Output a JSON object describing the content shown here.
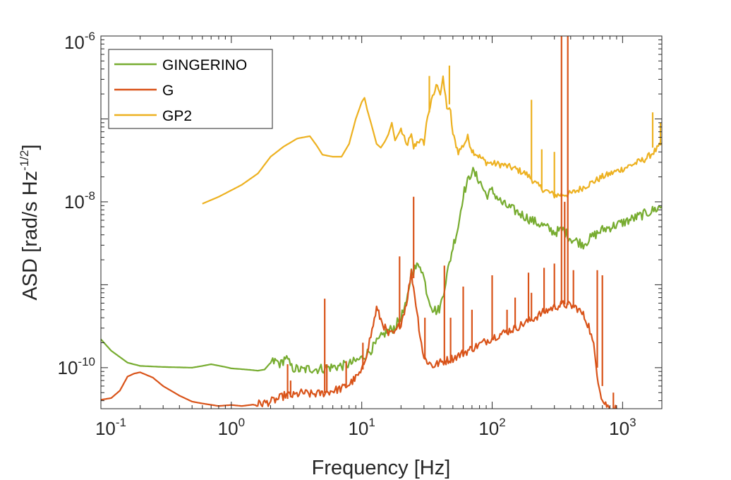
{
  "chart_data": {
    "type": "line",
    "title": "",
    "xlabel": "Frequency  [Hz]",
    "ylabel": "ASD  [rad/s Hz",
    "ylabel_sup": "-1/2",
    "ylabel_close": "]",
    "xscale": "log",
    "yscale": "log",
    "xlim": [
      0.1,
      2000
    ],
    "ylim": [
      3.2e-11,
      1e-06
    ],
    "grid": false,
    "legend_location": "top-left",
    "x_ticks": [
      {
        "value": 0.1,
        "base": "10",
        "exp": "-1"
      },
      {
        "value": 1,
        "base": "10",
        "exp": "0"
      },
      {
        "value": 10,
        "base": "10",
        "exp": "1"
      },
      {
        "value": 100,
        "base": "10",
        "exp": "2"
      },
      {
        "value": 1000,
        "base": "10",
        "exp": "3"
      }
    ],
    "y_ticks": [
      {
        "value": 1e-10,
        "base": "10",
        "exp": "-10"
      },
      {
        "value": 1e-08,
        "base": "10",
        "exp": "-8"
      },
      {
        "value": 1e-06,
        "base": "10",
        "exp": "-6"
      }
    ],
    "series": [
      {
        "name": "GINGERINO",
        "color": "#77AC30",
        "x": [
          0.1,
          0.12,
          0.16,
          0.2,
          0.3,
          0.5,
          0.6,
          0.7,
          0.9,
          1.0,
          1.2,
          1.4,
          1.6,
          1.8,
          2.0,
          2.2,
          2.4,
          2.6,
          2.9,
          3.5,
          4.0,
          4.5,
          5.5,
          7.0,
          8.0,
          9.0,
          10,
          12,
          15,
          18,
          20,
          22,
          24,
          26,
          28,
          30,
          32,
          35,
          38,
          40,
          45,
          50,
          55,
          60,
          70,
          80,
          90,
          100,
          120,
          150,
          200,
          250,
          300,
          350,
          400,
          500,
          600,
          700,
          1000,
          1500,
          2000
        ],
        "y": [
          2.2e-10,
          1.6e-10,
          1.15e-10,
          1.05e-10,
          1.02e-10,
          1e-10,
          1.05e-10,
          1.1e-10,
          1.02e-10,
          9.8e-11,
          9.6e-11,
          9.4e-11,
          9.2e-11,
          9.5e-11,
          1.15e-10,
          1.2e-10,
          1.1e-10,
          1.35e-10,
          1e-10,
          9.3e-11,
          9.8e-11,
          9.6e-11,
          1e-10,
          1.05e-10,
          1.1e-10,
          1.2e-10,
          1.3e-10,
          1.7e-10,
          2.6e-10,
          3.1e-10,
          4.1e-10,
          5.7e-10,
          1.45e-09,
          1.6e-09,
          1.8e-09,
          1.2e-09,
          7.5e-10,
          5.2e-10,
          4.8e-10,
          5.4e-10,
          1.3e-09,
          2.9e-09,
          5.1e-09,
          1.25e-08,
          2.4e-08,
          1.8e-08,
          1.2e-08,
          1.35e-08,
          9.5e-09,
          7.8e-09,
          6e-09,
          5.1e-09,
          4.3e-09,
          4.6e-09,
          3.6e-09,
          3.1e-09,
          3.9e-09,
          4.6e-09,
          5.6e-09,
          7.2e-09,
          8.8e-09
        ]
      },
      {
        "name": "G",
        "color": "#D95319",
        "x": [
          0.1,
          0.12,
          0.14,
          0.16,
          0.18,
          0.2,
          0.25,
          0.3,
          0.4,
          0.5,
          0.6,
          0.8,
          1.0,
          1.2,
          1.5,
          1.8,
          2.0,
          2.3,
          2.6,
          3.0,
          3.5,
          4.0,
          5.0,
          6.0,
          7.0,
          8.0,
          9.0,
          10,
          11,
          12,
          13,
          14,
          16,
          18,
          20,
          22,
          24,
          26,
          28,
          30,
          35,
          40,
          50,
          60,
          80,
          100,
          150,
          200,
          250,
          300,
          350,
          400,
          450,
          500,
          550,
          600,
          650,
          700,
          800,
          900
        ],
        "y": [
          4.1e-11,
          4.3e-11,
          5.3e-11,
          7.8e-11,
          8.5e-11,
          8.8e-11,
          7.6e-11,
          6e-11,
          4.6e-11,
          3.9e-11,
          3.7e-11,
          3.45e-11,
          3.55e-11,
          3.45e-11,
          3.6e-11,
          3.75e-11,
          3.9e-11,
          4.2e-11,
          4.7e-11,
          4.6e-11,
          5e-11,
          4.8e-11,
          4.9e-11,
          5.3e-11,
          5.6e-11,
          6.3e-11,
          7.5e-11,
          8.9e-11,
          1.6e-10,
          2.8e-10,
          5.2e-10,
          3.8e-10,
          2.5e-10,
          2.6e-10,
          3.5e-10,
          6e-10,
          1.4e-09,
          6e-10,
          2.5e-10,
          1.3e-10,
          1.05e-10,
          1.15e-10,
          1.3e-10,
          1.5e-10,
          1.9e-10,
          2.3e-10,
          3e-10,
          3.8e-10,
          4.7e-10,
          5.4e-10,
          5.8e-10,
          5.6e-10,
          5.2e-10,
          4.3e-10,
          3.2e-10,
          1.8e-10,
          7e-11,
          4e-11,
          3.2e-11,
          3.2e-11
        ],
        "peaks": [
          {
            "x": 2.7,
            "y": 4.2e-11,
            "top": 1.1e-10
          },
          {
            "x": 2.85,
            "y": 4.4e-11,
            "top": 7e-11
          },
          {
            "x": 5.2,
            "y": 4.9e-11,
            "top": 6.8e-10
          },
          {
            "x": 5.4,
            "y": 5e-11,
            "top": 1.1e-10
          },
          {
            "x": 7.6,
            "y": 6e-11,
            "top": 1.2e-10
          },
          {
            "x": 10.2,
            "y": 9.5e-11,
            "top": 2e-10
          },
          {
            "x": 19.5,
            "y": 3e-10,
            "top": 2.2e-09
          },
          {
            "x": 25,
            "y": 1.2e-09,
            "top": 1.15e-08
          },
          {
            "x": 30.5,
            "y": 1.25e-10,
            "top": 4e-10
          },
          {
            "x": 43,
            "y": 1.15e-10,
            "top": 1.7e-09
          },
          {
            "x": 48,
            "y": 1.2e-10,
            "top": 4e-10
          },
          {
            "x": 60,
            "y": 1.5e-10,
            "top": 9.5e-10
          },
          {
            "x": 70,
            "y": 1.6e-10,
            "top": 5e-10
          },
          {
            "x": 100,
            "y": 2.3e-10,
            "top": 1.3e-09
          },
          {
            "x": 130,
            "y": 2.6e-10,
            "top": 5e-10
          },
          {
            "x": 150,
            "y": 3e-10,
            "top": 7e-10
          },
          {
            "x": 190,
            "y": 3.7e-10,
            "top": 1.4e-09
          },
          {
            "x": 200,
            "y": 3.8e-10,
            "top": 8e-10
          },
          {
            "x": 250,
            "y": 4.7e-10,
            "top": 1.6e-09
          },
          {
            "x": 300,
            "y": 5.4e-10,
            "top": 1.8e-09
          },
          {
            "x": 340,
            "y": 5.8e-10,
            "top": 1e-06
          },
          {
            "x": 360,
            "y": 5.8e-10,
            "top": 1e-08
          },
          {
            "x": 380,
            "y": 5.7e-10,
            "top": 1e-06
          },
          {
            "x": 420,
            "y": 5.5e-10,
            "top": 1.5e-09
          },
          {
            "x": 640,
            "y": 1e-10,
            "top": 1.5e-09
          },
          {
            "x": 700,
            "y": 6e-11,
            "top": 1.3e-09
          },
          {
            "x": 850,
            "y": 3.2e-11,
            "top": 5e-11
          }
        ]
      },
      {
        "name": "GP2",
        "color": "#EDB120",
        "x": [
          0.6,
          0.8,
          1.2,
          1.6,
          2.0,
          2.5,
          3.2,
          4.0,
          4.5,
          5.0,
          6.0,
          7.0,
          8.0,
          9.0,
          10.0,
          10.5,
          11.0,
          12.0,
          13.0,
          14.0,
          15.0,
          16.0,
          17.0,
          18.0,
          20.0,
          22.0,
          24.0,
          25.0,
          27.0,
          30.0,
          32.0,
          35.0,
          38.0,
          40.0,
          42.0,
          45.0,
          48.0,
          50.0,
          55.0,
          60.0,
          65.0,
          70.0,
          80.0,
          90.0,
          100,
          120,
          150,
          180,
          200,
          220,
          250,
          300,
          400,
          500,
          700,
          1000,
          1500,
          1800,
          2000
        ],
        "y": [
          9.5e-09,
          1.15e-08,
          1.6e-08,
          2.2e-08,
          3.5e-08,
          4.6e-08,
          5.8e-08,
          6.2e-08,
          4.8e-08,
          3.7e-08,
          3.5e-08,
          3.5e-08,
          5e-08,
          1e-07,
          1.6e-07,
          1.8e-07,
          1.3e-07,
          8e-08,
          5e-08,
          4.5e-08,
          5.3e-08,
          6.5e-08,
          9e-08,
          5.5e-08,
          7.5e-08,
          4.8e-08,
          6.2e-08,
          4.5e-08,
          5.5e-08,
          5.2e-08,
          1.1e-07,
          1.8e-07,
          2.7e-07,
          2e-07,
          3e-07,
          1.4e-07,
          1.2e-07,
          6.5e-08,
          4e-08,
          4.8e-08,
          6e-08,
          4.2e-08,
          3.5e-08,
          3e-08,
          2.9e-08,
          2.8e-08,
          2.5e-08,
          2.2e-08,
          1.9e-08,
          1.6e-08,
          1.4e-08,
          1.2e-08,
          1.25e-08,
          1.5e-08,
          2e-08,
          2.5e-08,
          3.3e-08,
          4.2e-08,
          5e-08
        ],
        "peaks": [
          {
            "x": 33,
            "y": 1.2e-07,
            "top": 3.3e-07
          },
          {
            "x": 47,
            "y": 1.5e-07,
            "top": 4.4e-07
          },
          {
            "x": 200,
            "y": 1.9e-08,
            "top": 1.7e-07
          },
          {
            "x": 240,
            "y": 1.4e-08,
            "top": 4.3e-08
          },
          {
            "x": 300,
            "y": 1.2e-08,
            "top": 4e-08
          },
          {
            "x": 1700,
            "y": 4.5e-08,
            "top": 1.2e-07
          },
          {
            "x": 1950,
            "y": 4.8e-08,
            "top": 9e-08
          }
        ]
      }
    ]
  }
}
